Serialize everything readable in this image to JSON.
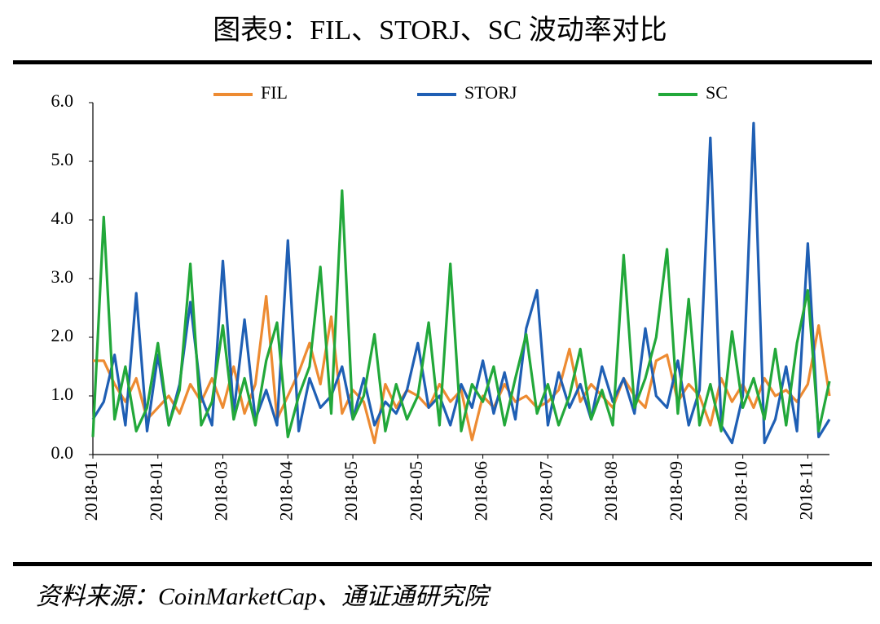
{
  "chart_data": {
    "type": "line",
    "title": "图表9：FIL、STORJ、SC 波动率对比",
    "source": "资料来源：CoinMarketCap、通证通研究院",
    "categories": [
      "2018-01",
      null,
      null,
      null,
      null,
      null,
      "2018-01",
      null,
      null,
      null,
      null,
      null,
      "2018-03",
      null,
      null,
      null,
      null,
      null,
      "2018-04",
      null,
      null,
      null,
      null,
      null,
      "2018-05",
      null,
      null,
      null,
      null,
      null,
      "2018-05",
      null,
      null,
      null,
      null,
      null,
      "2018-06",
      null,
      null,
      null,
      null,
      null,
      "2018-07",
      null,
      null,
      null,
      null,
      null,
      "2018-08",
      null,
      null,
      null,
      null,
      null,
      "2018-09",
      null,
      null,
      null,
      null,
      null,
      "2018-10",
      null,
      null,
      null,
      null,
      null,
      "2018-11",
      null,
      null
    ],
    "series": [
      {
        "name": "FIL",
        "color": "#ed8b32",
        "values": [
          1.6,
          1.6,
          1.2,
          0.9,
          1.3,
          0.6,
          0.8,
          1.0,
          0.7,
          1.2,
          0.9,
          1.3,
          0.8,
          1.5,
          0.7,
          1.2,
          2.7,
          0.6,
          1.0,
          1.4,
          1.9,
          1.2,
          2.35,
          0.7,
          1.1,
          0.9,
          0.2,
          1.2,
          0.8,
          1.1,
          1.0,
          0.8,
          1.2,
          0.9,
          1.1,
          0.25,
          1.0,
          0.8,
          1.2,
          0.9,
          1.0,
          0.8,
          0.9,
          1.1,
          1.8,
          0.9,
          1.2,
          1.0,
          0.8,
          1.3,
          1.0,
          0.8,
          1.6,
          1.7,
          0.9,
          1.2,
          1.0,
          0.5,
          1.3,
          0.9,
          1.2,
          0.8,
          1.3,
          1.0,
          1.1,
          0.9,
          1.2,
          2.2,
          1.0
        ]
      },
      {
        "name": "STORJ",
        "color": "#1f5fb4",
        "values": [
          0.6,
          0.9,
          1.7,
          0.5,
          2.75,
          0.4,
          1.7,
          0.5,
          1.2,
          2.6,
          1.0,
          0.5,
          3.3,
          0.7,
          2.3,
          0.6,
          1.1,
          0.5,
          3.65,
          0.4,
          1.3,
          0.8,
          1.0,
          1.5,
          0.6,
          1.3,
          0.5,
          0.9,
          0.7,
          1.1,
          1.9,
          0.8,
          1.0,
          0.5,
          1.2,
          0.8,
          1.6,
          0.7,
          1.4,
          0.6,
          2.15,
          2.8,
          0.5,
          1.4,
          0.8,
          1.2,
          0.6,
          1.5,
          0.9,
          1.3,
          0.7,
          2.15,
          1.0,
          0.8,
          1.6,
          0.5,
          1.1,
          5.4,
          0.5,
          0.2,
          1.0,
          5.65,
          0.2,
          0.6,
          1.5,
          0.4,
          3.6,
          0.3,
          0.6
        ]
      },
      {
        "name": "SC",
        "color": "#22a83a",
        "values": [
          0.3,
          4.05,
          0.6,
          1.5,
          0.4,
          0.8,
          1.9,
          0.5,
          1.1,
          3.25,
          0.5,
          0.9,
          2.2,
          0.6,
          1.3,
          0.5,
          1.6,
          2.25,
          0.3,
          1.0,
          1.5,
          3.2,
          0.7,
          4.5,
          0.6,
          1.0,
          2.05,
          0.4,
          1.2,
          0.6,
          1.0,
          2.25,
          0.5,
          3.25,
          0.4,
          1.2,
          0.9,
          1.5,
          0.5,
          1.3,
          2.05,
          0.7,
          1.2,
          0.5,
          1.0,
          1.8,
          0.6,
          1.1,
          0.5,
          3.4,
          0.8,
          1.3,
          2.0,
          3.5,
          0.7,
          2.65,
          0.5,
          1.2,
          0.4,
          2.1,
          0.8,
          1.3,
          0.6,
          1.8,
          0.5,
          1.9,
          2.8,
          0.4,
          1.25
        ]
      }
    ],
    "ylim": [
      0,
      6
    ],
    "yticks": [
      {
        "value": 0,
        "label": "0.0"
      },
      {
        "value": 1,
        "label": "1.0"
      },
      {
        "value": 2,
        "label": "2.0"
      },
      {
        "value": 3,
        "label": "3.0"
      },
      {
        "value": 4,
        "label": "4.0"
      },
      {
        "value": 5,
        "label": "5.0"
      },
      {
        "value": 6,
        "label": "6.0"
      }
    ],
    "legend": "top",
    "grid": false
  }
}
